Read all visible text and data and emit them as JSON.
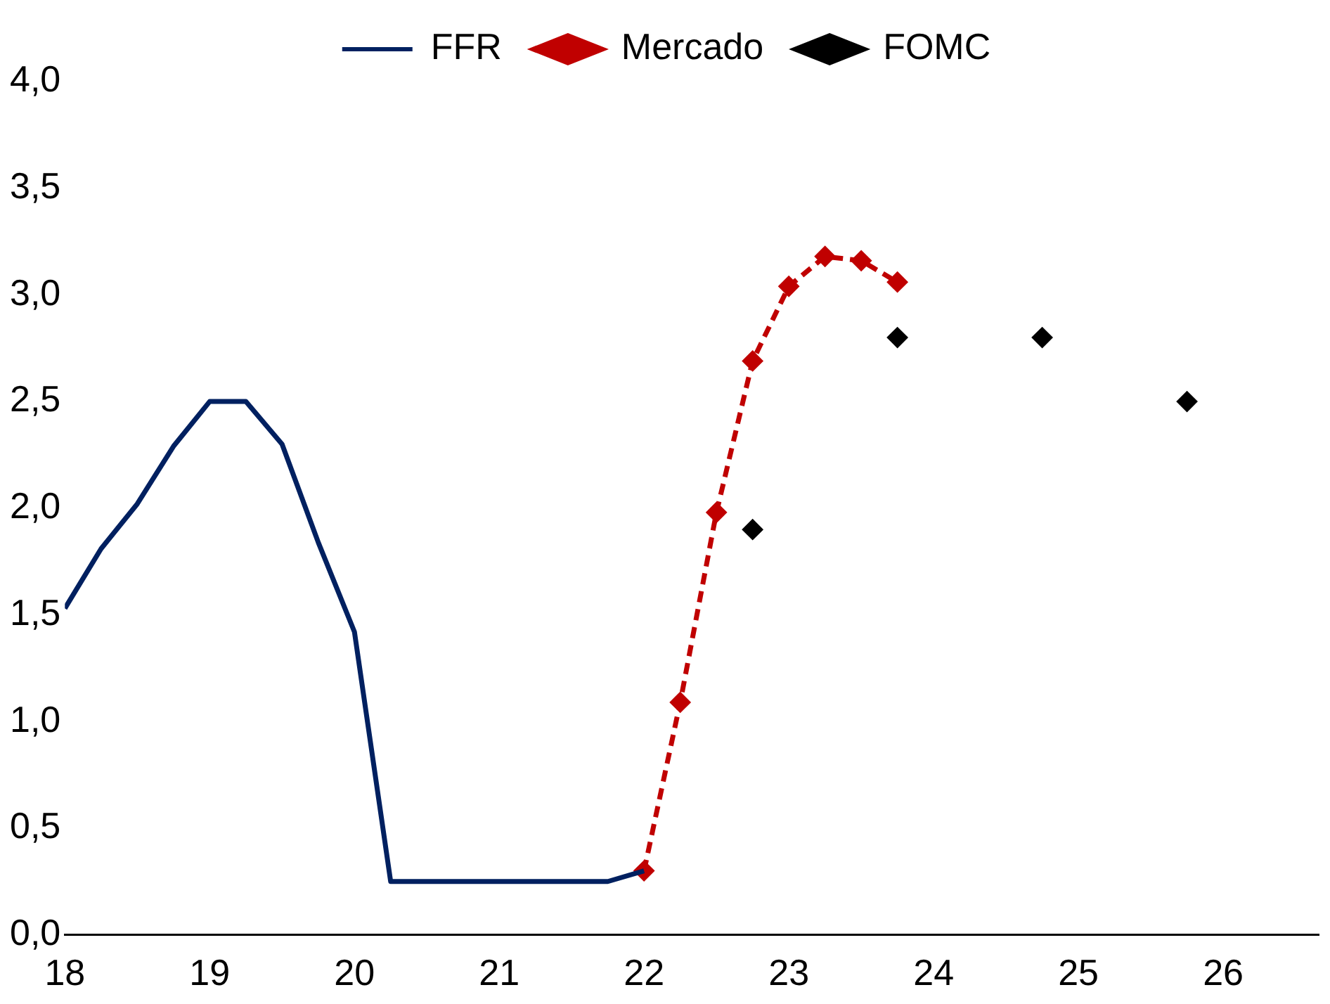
{
  "chart_data": {
    "type": "line",
    "legend": "top",
    "grid": false,
    "xlim": [
      18,
      26.66
    ],
    "xticks": [
      18,
      19,
      20,
      21,
      22,
      23,
      24,
      25,
      26
    ],
    "ylim": [
      0,
      4
    ],
    "yticks": [
      {
        "value": 0,
        "label": "0,0"
      },
      {
        "value": 0.5,
        "label": "0,5"
      },
      {
        "value": 1,
        "label": "1,0"
      },
      {
        "value": 1.5,
        "label": "1,5"
      },
      {
        "value": 2,
        "label": "2,0"
      },
      {
        "value": 2.5,
        "label": "2,5"
      },
      {
        "value": 3,
        "label": "3,0"
      },
      {
        "value": 3.5,
        "label": "3,5"
      },
      {
        "value": 4,
        "label": "4,0"
      }
    ],
    "series": [
      {
        "name": "FFR",
        "type": "line",
        "color": "#002060",
        "marker": "none",
        "line_style": "solid",
        "x": [
          18,
          18.25,
          18.5,
          18.75,
          19,
          19.25,
          19.5,
          19.75,
          20,
          20.25,
          20.5,
          20.75,
          21,
          21.25,
          21.5,
          21.75,
          22
        ],
        "values": [
          1.53,
          1.81,
          2.02,
          2.29,
          2.5,
          2.5,
          2.3,
          1.84,
          1.42,
          0.25,
          0.25,
          0.25,
          0.25,
          0.25,
          0.25,
          0.25,
          0.3
        ]
      },
      {
        "name": "Mercado",
        "type": "line",
        "color": "#c00000",
        "marker": "diamond",
        "line_style": "dashed",
        "x": [
          22,
          22.25,
          22.5,
          22.75,
          23,
          23.25,
          23.5,
          23.75
        ],
        "values": [
          0.3,
          1.09,
          1.98,
          2.69,
          3.04,
          3.18,
          3.16,
          3.06
        ]
      },
      {
        "name": "FOMC",
        "type": "scatter",
        "color": "#000000",
        "marker": "diamond",
        "x": [
          22.75,
          23.75,
          24.75,
          25.75
        ],
        "values": [
          1.9,
          2.8,
          2.8,
          2.5
        ]
      }
    ]
  }
}
